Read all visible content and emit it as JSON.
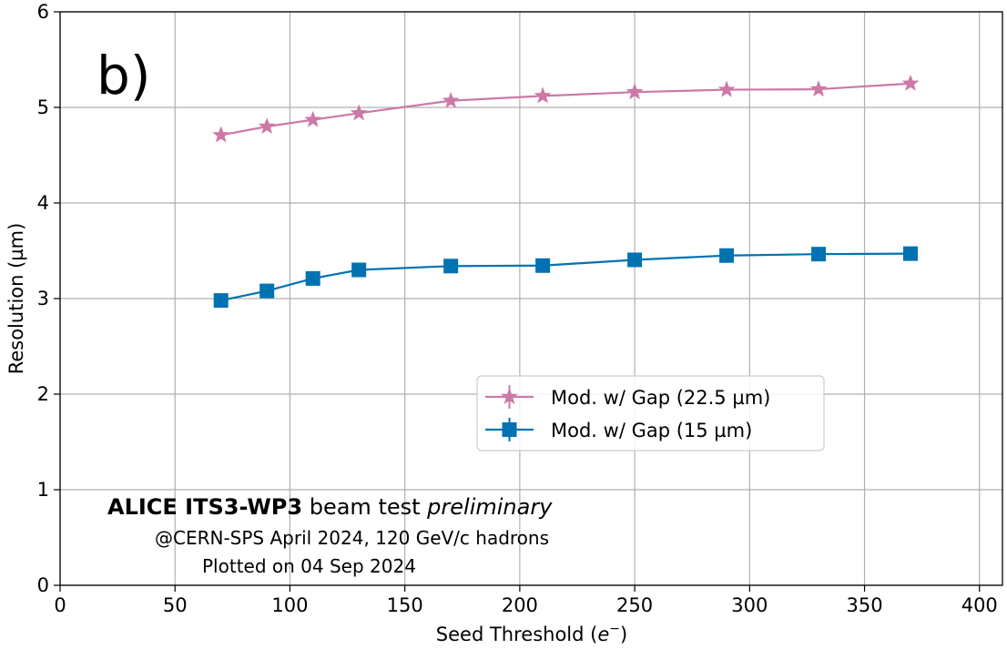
{
  "chart_data": {
    "type": "line",
    "title": "",
    "panel_label": "b)",
    "xlabel_main": "Seed Threshold (",
    "xlabel_var": "e",
    "xlabel_sup": "−",
    "xlabel_end": ")",
    "ylabel": "Resolution (µm)",
    "xlim": [
      0,
      410
    ],
    "ylim": [
      0,
      6
    ],
    "xticks": [
      0,
      50,
      100,
      150,
      200,
      250,
      300,
      350,
      400
    ],
    "yticks": [
      0,
      1,
      2,
      3,
      4,
      5,
      6
    ],
    "grid": true,
    "legend_position": "center-right",
    "series": [
      {
        "name": "Mod. w/ Gap (22.5 µm)",
        "color": "#cc79a7",
        "marker": "star",
        "x": [
          70,
          90,
          110,
          130,
          170,
          210,
          250,
          290,
          330,
          370
        ],
        "y": [
          4.71,
          4.8,
          4.87,
          4.94,
          5.07,
          5.12,
          5.16,
          5.185,
          5.19,
          5.25
        ]
      },
      {
        "name": "Mod. w/ Gap (15 µm)",
        "color": "#0072b2",
        "marker": "square",
        "x": [
          70,
          90,
          110,
          130,
          170,
          210,
          250,
          290,
          330,
          370
        ],
        "y": [
          2.98,
          3.08,
          3.21,
          3.3,
          3.34,
          3.345,
          3.405,
          3.45,
          3.465,
          3.47
        ]
      }
    ],
    "annotation": {
      "line1_bold": "ALICE ITS3-WP3",
      "line1_normal": " beam test ",
      "line1_italic": "preliminary",
      "line2": "@CERN-SPS April 2024, 120 GeV/c hadrons",
      "line3": "Plotted on 04 Sep 2024"
    }
  }
}
